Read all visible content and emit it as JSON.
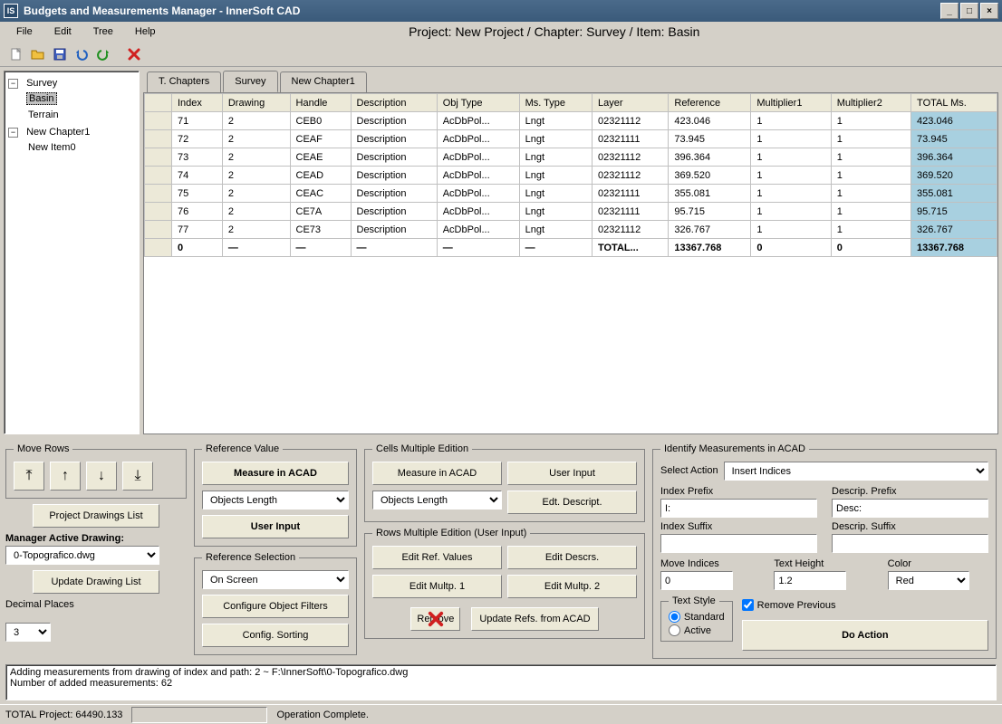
{
  "window": {
    "title": "Budgets and Measurements Manager - InnerSoft CAD",
    "app_icon_text": "IS"
  },
  "menu": {
    "file": "File",
    "edit": "Edit",
    "tree": "Tree",
    "help": "Help"
  },
  "breadcrumb": "Project: New Project / Chapter: Survey / Item: Basin",
  "tree": {
    "survey": "Survey",
    "basin": "Basin",
    "terrain": "Terrain",
    "newchapter": "New Chapter1",
    "newitem": "New Item0"
  },
  "tabs": {
    "tchapters": "T. Chapters",
    "survey": "Survey",
    "newchapter": "New Chapter1"
  },
  "grid": {
    "headers": [
      "",
      "Index",
      "Drawing",
      "Handle",
      "Description",
      "Obj Type",
      "Ms. Type",
      "Layer",
      "Reference",
      "Multiplier1",
      "Multiplier2",
      "TOTAL Ms."
    ],
    "rows": [
      [
        "71",
        "2",
        "CEB0",
        "Description",
        "AcDbPol...",
        "Lngt",
        "02321112",
        "423.046",
        "1",
        "1",
        "423.046"
      ],
      [
        "72",
        "2",
        "CEAF",
        "Description",
        "AcDbPol...",
        "Lngt",
        "02321111",
        "73.945",
        "1",
        "1",
        "73.945"
      ],
      [
        "73",
        "2",
        "CEAE",
        "Description",
        "AcDbPol...",
        "Lngt",
        "02321112",
        "396.364",
        "1",
        "1",
        "396.364"
      ],
      [
        "74",
        "2",
        "CEAD",
        "Description",
        "AcDbPol...",
        "Lngt",
        "02321112",
        "369.520",
        "1",
        "1",
        "369.520"
      ],
      [
        "75",
        "2",
        "CEAC",
        "Description",
        "AcDbPol...",
        "Lngt",
        "02321111",
        "355.081",
        "1",
        "1",
        "355.081"
      ],
      [
        "76",
        "2",
        "CE7A",
        "Description",
        "AcDbPol...",
        "Lngt",
        "02321111",
        "95.715",
        "1",
        "1",
        "95.715"
      ],
      [
        "77",
        "2",
        "CE73",
        "Description",
        "AcDbPol...",
        "Lngt",
        "02321112",
        "326.767",
        "1",
        "1",
        "326.767"
      ]
    ],
    "total_row": [
      "0",
      "—",
      "—",
      "—",
      "—",
      "—",
      "TOTAL...",
      "13367.768",
      "0",
      "0",
      "13367.768"
    ]
  },
  "move_rows": {
    "legend": "Move Rows"
  },
  "project_drawings_btn": "Project Drawings List",
  "manager_active_drawing": {
    "label": "Manager Active Drawing:",
    "value": "0-Topografico.dwg"
  },
  "update_drawing_list": "Update Drawing List",
  "decimal_places": {
    "label": "Decimal Places",
    "value": "3"
  },
  "ref_value": {
    "legend": "Reference Value",
    "measure": "Measure in ACAD",
    "select_val": "Objects Length",
    "user_input": "User Input"
  },
  "ref_selection": {
    "legend": "Reference Selection",
    "value": "On Screen",
    "config_filters": "Configure Object Filters",
    "config_sorting": "Config. Sorting"
  },
  "cells_multi": {
    "legend": "Cells Multiple Edition",
    "measure": "Measure in ACAD",
    "user_input": "User Input",
    "select_val": "Objects Length",
    "edit_descript": "Edt. Descript."
  },
  "rows_multi": {
    "legend": "Rows Multiple Edition (User Input)",
    "edit_ref": "Edit Ref. Values",
    "edit_descrs": "Edit Descrs.",
    "edit_m1": "Edit Multp. 1",
    "edit_m2": "Edit Multp. 2",
    "remove": "Remove",
    "update_refs": "Update Refs. from ACAD"
  },
  "identify": {
    "legend": "Identify Measurements in ACAD",
    "select_action_lbl": "Select Action",
    "select_action_val": "Insert Indices",
    "index_prefix_lbl": "Index Prefix",
    "index_prefix_val": "I:",
    "descrip_prefix_lbl": "Descrip. Prefix",
    "descrip_prefix_val": "Desc:",
    "index_suffix_lbl": "Index Suffix",
    "index_suffix_val": "",
    "descrip_suffix_lbl": "Descrip. Suffix",
    "descrip_suffix_val": "",
    "move_indices_lbl": "Move Indices",
    "move_indices_val": "0",
    "text_height_lbl": "Text Height",
    "text_height_val": "1.2",
    "color_lbl": "Color",
    "color_val": "Red",
    "text_style_legend": "Text Style",
    "radio_standard": "Standard",
    "radio_active": "Active",
    "remove_previous": "Remove Previous",
    "do_action": "Do Action"
  },
  "log": "Adding measurements from drawing of index and path: 2 ~ F:\\InnerSoft\\0-Topografico.dwg\nNumber of added measurements: 62",
  "status": {
    "total": "TOTAL Project: 64490.133",
    "operation": "Operation Complete."
  }
}
